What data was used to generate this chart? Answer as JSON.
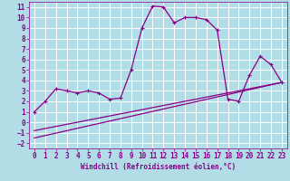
{
  "xlabel": "Windchill (Refroidissement éolien,°C)",
  "xlim": [
    -0.5,
    23.5
  ],
  "ylim": [
    -2.5,
    11.5
  ],
  "xticks": [
    0,
    1,
    2,
    3,
    4,
    5,
    6,
    7,
    8,
    9,
    10,
    11,
    12,
    13,
    14,
    15,
    16,
    17,
    18,
    19,
    20,
    21,
    22,
    23
  ],
  "yticks": [
    -2,
    -1,
    0,
    1,
    2,
    3,
    4,
    5,
    6,
    7,
    8,
    9,
    10,
    11
  ],
  "bg_color": "#b2dde6",
  "line_color": "#880088",
  "grid_color": "#ffffff",
  "line1_x": [
    0,
    1,
    2,
    3,
    4,
    5,
    6,
    7,
    8,
    9,
    10,
    11,
    12,
    13,
    14,
    15,
    16,
    17,
    18,
    19,
    20,
    21,
    22,
    23
  ],
  "line1_y": [
    1.0,
    2.0,
    3.2,
    3.0,
    2.8,
    3.0,
    2.8,
    2.2,
    2.3,
    5.0,
    9.0,
    11.1,
    11.0,
    9.5,
    10.0,
    10.0,
    9.8,
    8.8,
    2.2,
    2.0,
    4.5,
    6.3,
    5.5,
    3.8
  ],
  "line2_x": [
    0,
    23
  ],
  "line2_y": [
    -0.8,
    3.8
  ],
  "line3_x": [
    0,
    23
  ],
  "line3_y": [
    -1.5,
    3.8
  ],
  "tick_fontsize": 5.5,
  "xlabel_fontsize": 5.5
}
